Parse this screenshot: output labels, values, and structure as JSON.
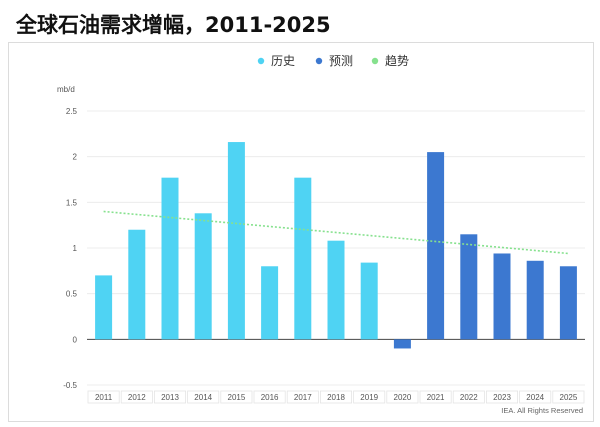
{
  "title": "全球石油需求增幅，2011-2025",
  "chart_data": {
    "type": "bar",
    "unit_label": "mb/d",
    "legend": [
      {
        "label": "历史",
        "color": "#4fd3f3",
        "marker": "dot"
      },
      {
        "label": "预测",
        "color": "#3c78d0",
        "marker": "dot"
      },
      {
        "label": "趋势",
        "color": "#86e18e",
        "marker": "dot"
      }
    ],
    "categories": [
      "2011",
      "2012",
      "2013",
      "2014",
      "2015",
      "2016",
      "2017",
      "2018",
      "2019",
      "2020",
      "2021",
      "2022",
      "2023",
      "2024",
      "2025"
    ],
    "series": [
      {
        "name": "历史",
        "color": "#4fd3f3",
        "values": [
          0.7,
          1.2,
          1.77,
          1.38,
          2.16,
          0.8,
          1.77,
          1.08,
          0.84,
          null,
          null,
          null,
          null,
          null,
          null
        ]
      },
      {
        "name": "预测",
        "color": "#3c78d0",
        "values": [
          null,
          null,
          null,
          null,
          null,
          null,
          null,
          null,
          null,
          -0.1,
          2.05,
          1.15,
          0.94,
          0.86,
          0.8
        ]
      }
    ],
    "trend": {
      "name": "趋势",
      "color": "#86e18e",
      "style": "dotted",
      "start": {
        "x": "2011",
        "y": 1.4
      },
      "end": {
        "x": "2025",
        "y": 0.94
      }
    },
    "ylim": [
      -0.5,
      2.5
    ],
    "yticks": [
      "2.5",
      "2",
      "1.5",
      "1",
      "0.5",
      "0",
      "-0.5"
    ],
    "grid": true,
    "legend_position": "top-center",
    "credit": "IEA. All Rights Reserved"
  }
}
